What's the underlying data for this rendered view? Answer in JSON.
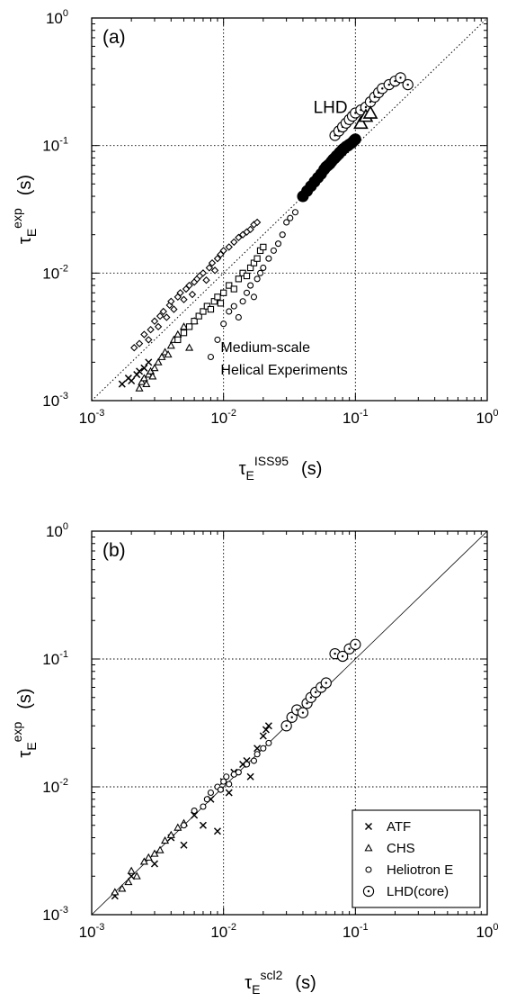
{
  "chart_data": [
    {
      "type": "scatter",
      "panel_label": "(a)",
      "xlabel": {
        "symbol": "τ",
        "sub": "E",
        "sup": "ISS95",
        "unit": "(s)"
      },
      "ylabel": {
        "symbol": "τ",
        "sub": "E",
        "sup": "exp",
        "unit": "(s)"
      },
      "xscale": "log",
      "yscale": "log",
      "xlim": [
        0.001,
        1
      ],
      "ylim": [
        0.001,
        1
      ],
      "xticks": [
        {
          "base": "10",
          "exp": "-3"
        },
        {
          "base": "10",
          "exp": "-2"
        },
        {
          "base": "10",
          "exp": "-1"
        },
        {
          "base": "10",
          "exp": "0",
          "text": "1"
        }
      ],
      "yticks": [
        {
          "base": "10",
          "exp": "-3"
        },
        {
          "base": "10",
          "exp": "-2"
        },
        {
          "base": "10",
          "exp": "-1"
        },
        {
          "base": "10",
          "exp": "0",
          "text": "1"
        }
      ],
      "grid": true,
      "reference_line": "dotted",
      "annotations": [
        {
          "text": "LHD",
          "x": 0.048,
          "y": 0.18
        },
        {
          "text": "Medium-scale",
          "x": 0.0095,
          "y": 0.0024
        },
        {
          "text": "Helical Experiments",
          "x": 0.0095,
          "y": 0.0016
        }
      ],
      "series": [
        {
          "marker": "x",
          "x": [
            0.0017,
            0.0019,
            0.002,
            0.0022,
            0.0023,
            0.0025,
            0.0027
          ],
          "y": [
            0.00135,
            0.0015,
            0.00143,
            0.0016,
            0.0017,
            0.0018,
            0.002
          ]
        },
        {
          "marker": "triangle",
          "x": [
            0.0023,
            0.0024,
            0.0025,
            0.0026,
            0.0027,
            0.0028,
            0.0029,
            0.003,
            0.0032,
            0.0034,
            0.0036,
            0.0038,
            0.004,
            0.0042,
            0.0045,
            0.005,
            0.0055,
            0.006
          ],
          "y": [
            0.00125,
            0.0014,
            0.0015,
            0.00135,
            0.0016,
            0.0017,
            0.00155,
            0.0018,
            0.002,
            0.0022,
            0.0024,
            0.0023,
            0.0027,
            0.003,
            0.0033,
            0.0038,
            0.0026,
            0.0042
          ]
        },
        {
          "marker": "diamond",
          "x": [
            0.0021,
            0.0023,
            0.0025,
            0.0027,
            0.0028,
            0.003,
            0.0032,
            0.0033,
            0.0035,
            0.0037,
            0.0039,
            0.004,
            0.0042,
            0.0045,
            0.0047,
            0.005,
            0.0052,
            0.0055,
            0.0058,
            0.006,
            0.0063,
            0.0066,
            0.007,
            0.0074,
            0.0078,
            0.0082,
            0.0086,
            0.009,
            0.0095,
            0.01,
            0.011,
            0.012,
            0.013,
            0.014,
            0.015,
            0.016,
            0.017,
            0.018
          ],
          "y": [
            0.0026,
            0.0028,
            0.0033,
            0.003,
            0.0036,
            0.0042,
            0.0038,
            0.0046,
            0.005,
            0.0045,
            0.0056,
            0.006,
            0.0052,
            0.0065,
            0.007,
            0.0062,
            0.0075,
            0.008,
            0.0068,
            0.0085,
            0.009,
            0.0095,
            0.01,
            0.0088,
            0.011,
            0.012,
            0.0105,
            0.013,
            0.014,
            0.015,
            0.016,
            0.0175,
            0.019,
            0.02,
            0.021,
            0.022,
            0.024,
            0.025
          ]
        },
        {
          "marker": "square",
          "x": [
            0.0045,
            0.005,
            0.0055,
            0.006,
            0.0065,
            0.007,
            0.0075,
            0.008,
            0.0085,
            0.009,
            0.0095,
            0.01,
            0.011,
            0.012,
            0.013,
            0.014,
            0.015,
            0.016,
            0.017,
            0.018,
            0.019,
            0.02
          ],
          "y": [
            0.003,
            0.0034,
            0.0038,
            0.0042,
            0.0046,
            0.005,
            0.0055,
            0.0052,
            0.006,
            0.0065,
            0.0058,
            0.007,
            0.008,
            0.0075,
            0.009,
            0.01,
            0.0095,
            0.011,
            0.012,
            0.013,
            0.015,
            0.016
          ]
        },
        {
          "marker": "circle-small",
          "x": [
            0.008,
            0.009,
            0.01,
            0.011,
            0.012,
            0.013,
            0.014,
            0.015,
            0.016,
            0.017,
            0.018,
            0.019,
            0.02,
            0.022,
            0.024,
            0.026,
            0.028,
            0.03,
            0.032,
            0.035
          ],
          "y": [
            0.0022,
            0.003,
            0.004,
            0.005,
            0.0055,
            0.0045,
            0.006,
            0.007,
            0.008,
            0.0065,
            0.009,
            0.01,
            0.011,
            0.013,
            0.015,
            0.017,
            0.02,
            0.025,
            0.027,
            0.03
          ]
        },
        {
          "marker": "circle-filled",
          "x": [
            0.04,
            0.043,
            0.046,
            0.049,
            0.052,
            0.055,
            0.058,
            0.06,
            0.062,
            0.064,
            0.066,
            0.068,
            0.07,
            0.072,
            0.074,
            0.076,
            0.078,
            0.08,
            0.082,
            0.085,
            0.088,
            0.09,
            0.094,
            0.098,
            0.1
          ],
          "y": [
            0.04,
            0.044,
            0.048,
            0.052,
            0.056,
            0.06,
            0.065,
            0.068,
            0.07,
            0.072,
            0.075,
            0.078,
            0.08,
            0.083,
            0.085,
            0.088,
            0.09,
            0.093,
            0.095,
            0.098,
            0.1,
            0.102,
            0.105,
            0.11,
            0.112
          ]
        },
        {
          "marker": "circle-dot",
          "x": [
            0.07,
            0.075,
            0.08,
            0.085,
            0.09,
            0.095,
            0.1,
            0.11,
            0.12,
            0.13,
            0.14,
            0.15,
            0.16,
            0.18,
            0.2,
            0.22,
            0.25
          ],
          "y": [
            0.12,
            0.13,
            0.14,
            0.15,
            0.16,
            0.17,
            0.18,
            0.19,
            0.2,
            0.22,
            0.24,
            0.26,
            0.28,
            0.3,
            0.32,
            0.34,
            0.3
          ]
        },
        {
          "marker": "triangle-large",
          "x": [
            0.11,
            0.12,
            0.13
          ],
          "y": [
            0.15,
            0.17,
            0.18
          ]
        }
      ]
    },
    {
      "type": "scatter",
      "panel_label": "(b)",
      "xlabel": {
        "symbol": "τ",
        "sub": "E",
        "sup": "scl2",
        "unit": "(s)"
      },
      "ylabel": {
        "symbol": "τ",
        "sub": "E",
        "sup": "exp",
        "unit": "(s)"
      },
      "xscale": "log",
      "yscale": "log",
      "xlim": [
        0.001,
        1
      ],
      "ylim": [
        0.001,
        1
      ],
      "xticks": [
        {
          "base": "10",
          "exp": "-3"
        },
        {
          "base": "10",
          "exp": "-2"
        },
        {
          "base": "10",
          "exp": "-1"
        },
        {
          "base": "10",
          "exp": "0",
          "text": "1"
        }
      ],
      "yticks": [
        {
          "base": "10",
          "exp": "-3"
        },
        {
          "base": "10",
          "exp": "-2"
        },
        {
          "base": "10",
          "exp": "-1"
        },
        {
          "base": "10",
          "exp": "0",
          "text": "1"
        }
      ],
      "grid": true,
      "reference_line": "solid",
      "legend": {
        "placement": "bottom-right"
      },
      "series": [
        {
          "name": "ATF",
          "marker": "x",
          "x": [
            0.0015,
            0.002,
            0.003,
            0.004,
            0.005,
            0.006,
            0.007,
            0.008,
            0.009,
            0.01,
            0.011,
            0.012,
            0.014,
            0.015,
            0.016,
            0.018,
            0.02,
            0.021,
            0.022
          ],
          "y": [
            0.0014,
            0.002,
            0.0025,
            0.004,
            0.0035,
            0.006,
            0.005,
            0.008,
            0.0045,
            0.011,
            0.009,
            0.013,
            0.015,
            0.016,
            0.012,
            0.02,
            0.025,
            0.028,
            0.03
          ]
        },
        {
          "name": "CHS",
          "marker": "triangle",
          "x": [
            0.0015,
            0.0017,
            0.0019,
            0.002,
            0.0022,
            0.0025,
            0.0027,
            0.003,
            0.0033,
            0.0036,
            0.004,
            0.0045,
            0.005
          ],
          "y": [
            0.0015,
            0.0016,
            0.0018,
            0.0022,
            0.002,
            0.0026,
            0.0028,
            0.003,
            0.0032,
            0.0038,
            0.0042,
            0.0048,
            0.0052
          ]
        },
        {
          "name": "Heliotron E",
          "marker": "circle-small",
          "x": [
            0.005,
            0.006,
            0.007,
            0.0075,
            0.008,
            0.009,
            0.0095,
            0.01,
            0.0105,
            0.011,
            0.012,
            0.013,
            0.015,
            0.017,
            0.018,
            0.02,
            0.022
          ],
          "y": [
            0.005,
            0.0065,
            0.007,
            0.008,
            0.009,
            0.01,
            0.0095,
            0.011,
            0.012,
            0.0105,
            0.0125,
            0.013,
            0.015,
            0.016,
            0.018,
            0.02,
            0.022
          ]
        },
        {
          "name": "LHD(core)",
          "marker": "circle-dot",
          "x": [
            0.03,
            0.033,
            0.036,
            0.04,
            0.043,
            0.046,
            0.05,
            0.055,
            0.06,
            0.07,
            0.08,
            0.09,
            0.1
          ],
          "y": [
            0.03,
            0.035,
            0.04,
            0.038,
            0.045,
            0.05,
            0.055,
            0.06,
            0.065,
            0.11,
            0.105,
            0.12,
            0.13
          ]
        }
      ]
    }
  ]
}
